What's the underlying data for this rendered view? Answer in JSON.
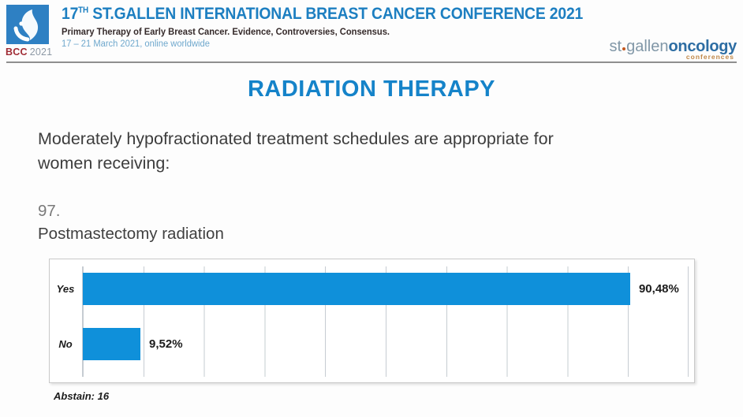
{
  "header": {
    "logo": {
      "bcc": "BCC",
      "year": "2021"
    },
    "title_num": "17",
    "title_sup": "TH",
    "title_rest": " ST.GALLEN INTERNATIONAL BREAST CANCER CONFERENCE 2021",
    "subtitle": "Primary Therapy of Early Breast Cancer. Evidence, Controversies, Consensus.",
    "dates": "17 – 21 March 2021, online worldwide",
    "brand": {
      "st": "st",
      "gallen": "gallen",
      "oncology": "oncology",
      "conferences": "conferences"
    }
  },
  "main": {
    "title": "RADIATION THERAPY",
    "question_intro_line1": "Moderately hypofractionated treatment schedules are appropriate for",
    "question_intro_line2": "women receiving:",
    "question_number": "97.",
    "question_label": "Postmastectomy radiation",
    "abstain_note": "Abstain: 16"
  },
  "chart_data": {
    "type": "bar",
    "orientation": "horizontal",
    "categories": [
      "Yes",
      "No"
    ],
    "values": [
      90.48,
      9.52
    ],
    "value_labels": [
      "90,48%",
      "9,52%"
    ],
    "xlim": [
      0,
      100
    ],
    "gridline_step": 10,
    "grid_on": true,
    "bar_color": "#0f90da",
    "legend": "none",
    "annotations": [
      "Abstain: 16"
    ]
  },
  "colors": {
    "header_blue": "#1d7fc1",
    "title_blue": "#1583c9",
    "date_blue": "#6fa8cd",
    "bcc_red": "#a02c35",
    "logo_square_blue": "#2e80c3",
    "brand_gray_blue": "#8197a7",
    "brand_dark_blue": "#2d6da3",
    "brand_orange": "#c08747",
    "bar_blue": "#0f90da"
  }
}
